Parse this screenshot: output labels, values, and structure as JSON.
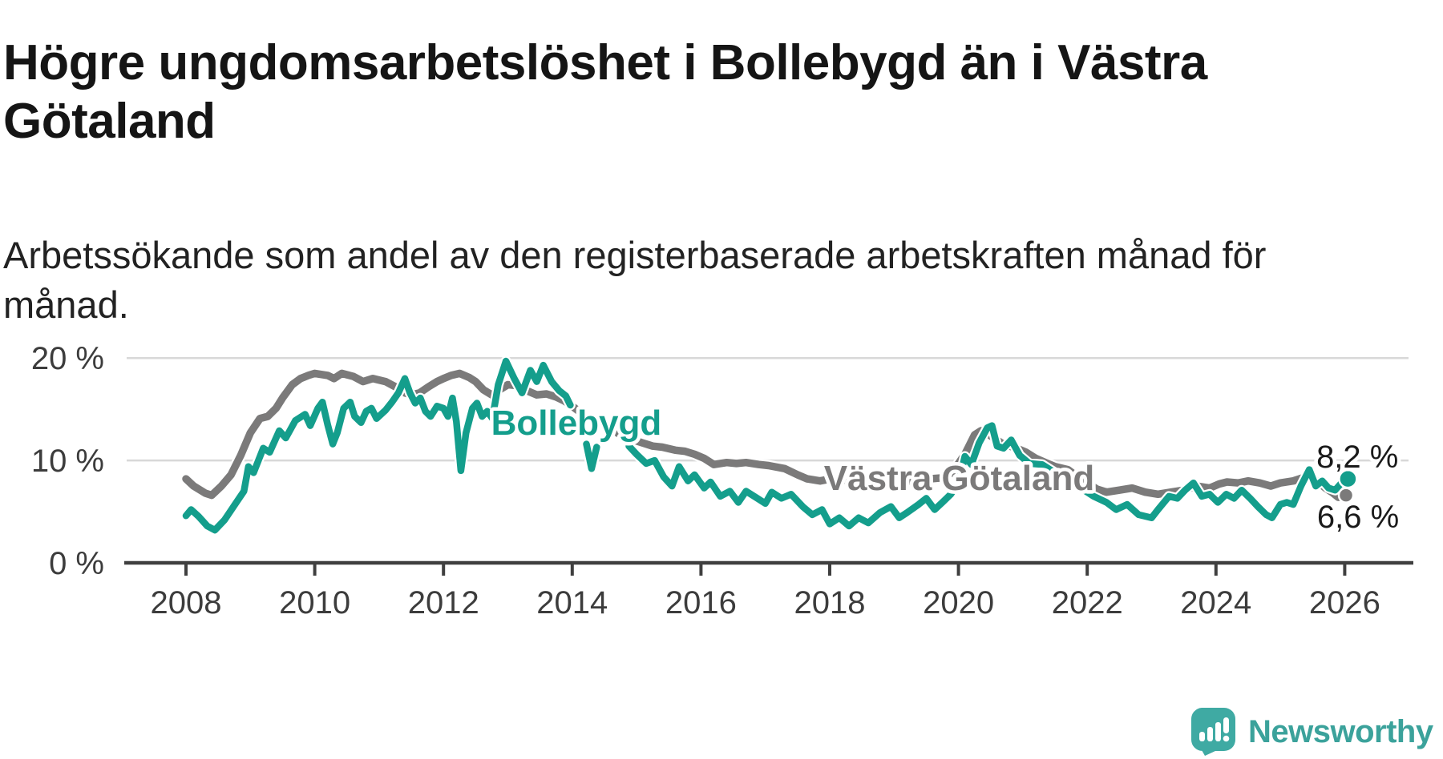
{
  "title": "Högre ungdomsarbetslöshet i Bollebygd än i Västra Götaland",
  "subtitle": "Arbetssökande som andel av den registerbaserade arbetskraften månad för månad.",
  "footer": {
    "brand": "Newsworthy",
    "brand_color": "#3faaa3"
  },
  "chart_data": {
    "type": "line",
    "title": "",
    "xlabel": "",
    "ylabel": "",
    "grid": "horizontal-only",
    "x_range": [
      2008,
      2026.9
    ],
    "ylim": [
      0,
      21
    ],
    "yticks": [
      {
        "value": 0,
        "label": "0 %"
      },
      {
        "value": 10,
        "label": "10 %"
      },
      {
        "value": 20,
        "label": "20 %"
      }
    ],
    "xticks": [
      {
        "value": 2008,
        "label": "2008"
      },
      {
        "value": 2010,
        "label": "2010"
      },
      {
        "value": 2012,
        "label": "2012"
      },
      {
        "value": 2014,
        "label": "2014"
      },
      {
        "value": 2016,
        "label": "2016"
      },
      {
        "value": 2018,
        "label": "2018"
      },
      {
        "value": 2020,
        "label": "2020"
      },
      {
        "value": 2022,
        "label": "2022"
      },
      {
        "value": 2024,
        "label": "2024"
      },
      {
        "value": 2026,
        "label": "2026"
      }
    ],
    "series": [
      {
        "name": "Västra Götaland",
        "color": "#7b7a7a",
        "line_width": 9.5,
        "label_anchor": {
          "year": 2017.91,
          "value": 7.1
        },
        "end_dot": {
          "year": 2026.02,
          "value": 6.6,
          "radius": 9
        },
        "end_label": {
          "text": "6,6 %",
          "year": 2025.57,
          "value": 3.45
        },
        "points": [
          [
            2008.0,
            8.2
          ],
          [
            2008.12,
            7.5
          ],
          [
            2008.3,
            6.8
          ],
          [
            2008.4,
            6.6
          ],
          [
            2008.55,
            7.5
          ],
          [
            2008.7,
            8.6
          ],
          [
            2008.85,
            10.5
          ],
          [
            2009.0,
            12.7
          ],
          [
            2009.15,
            14.1
          ],
          [
            2009.27,
            14.3
          ],
          [
            2009.4,
            15.1
          ],
          [
            2009.5,
            16.1
          ],
          [
            2009.65,
            17.4
          ],
          [
            2009.78,
            18.0
          ],
          [
            2009.9,
            18.3
          ],
          [
            2010.0,
            18.5
          ],
          [
            2010.2,
            18.3
          ],
          [
            2010.3,
            18.0
          ],
          [
            2010.42,
            18.5
          ],
          [
            2010.6,
            18.2
          ],
          [
            2010.75,
            17.7
          ],
          [
            2010.9,
            18.0
          ],
          [
            2011.1,
            17.7
          ],
          [
            2011.25,
            17.2
          ],
          [
            2011.4,
            16.6
          ],
          [
            2011.5,
            16.4
          ],
          [
            2011.63,
            16.6
          ],
          [
            2011.77,
            17.2
          ],
          [
            2011.9,
            17.7
          ],
          [
            2012.0,
            18.0
          ],
          [
            2012.12,
            18.3
          ],
          [
            2012.25,
            18.5
          ],
          [
            2012.4,
            18.1
          ],
          [
            2012.5,
            17.7
          ],
          [
            2012.62,
            16.9
          ],
          [
            2012.75,
            16.4
          ],
          [
            2012.87,
            16.9
          ],
          [
            2013.0,
            17.4
          ],
          [
            2013.15,
            17.3
          ],
          [
            2013.3,
            16.8
          ],
          [
            2013.45,
            16.4
          ],
          [
            2013.6,
            16.5
          ],
          [
            2013.75,
            16.2
          ],
          [
            2013.88,
            15.8
          ],
          [
            2014.0,
            15.3
          ],
          [
            2014.25,
            14.1
          ],
          [
            2014.5,
            13.5
          ],
          [
            2014.75,
            12.5
          ],
          [
            2014.95,
            12.0
          ],
          [
            2015.1,
            11.7
          ],
          [
            2015.25,
            11.4
          ],
          [
            2015.4,
            11.3
          ],
          [
            2015.6,
            11.0
          ],
          [
            2015.75,
            10.9
          ],
          [
            2015.9,
            10.6
          ],
          [
            2016.05,
            10.2
          ],
          [
            2016.2,
            9.6
          ],
          [
            2016.4,
            9.8
          ],
          [
            2016.55,
            9.7
          ],
          [
            2016.7,
            9.8
          ],
          [
            2016.9,
            9.6
          ],
          [
            2017.05,
            9.5
          ],
          [
            2017.3,
            9.2
          ],
          [
            2017.5,
            8.6
          ],
          [
            2017.65,
            8.2
          ],
          [
            2017.85,
            8.0
          ],
          [
            2018.1,
            8.3
          ],
          [
            2018.3,
            8.0
          ],
          [
            2018.5,
            8.0
          ],
          [
            2018.7,
            8.2
          ],
          [
            2018.9,
            8.3
          ],
          [
            2019.15,
            8.0
          ],
          [
            2019.35,
            8.0
          ],
          [
            2019.55,
            8.2
          ],
          [
            2019.75,
            8.3
          ],
          [
            2019.9,
            8.8
          ],
          [
            2020.1,
            10.6
          ],
          [
            2020.25,
            12.5
          ],
          [
            2020.35,
            12.9
          ],
          [
            2020.45,
            12.6
          ],
          [
            2020.55,
            12.2
          ],
          [
            2020.67,
            11.7
          ],
          [
            2020.8,
            11.4
          ],
          [
            2020.9,
            11.2
          ],
          [
            2021.05,
            10.8
          ],
          [
            2021.2,
            10.2
          ],
          [
            2021.35,
            9.8
          ],
          [
            2021.5,
            9.4
          ],
          [
            2021.7,
            9.1
          ],
          [
            2021.85,
            8.4
          ],
          [
            2022.0,
            7.8
          ],
          [
            2022.15,
            7.2
          ],
          [
            2022.3,
            6.9
          ],
          [
            2022.5,
            7.1
          ],
          [
            2022.7,
            7.3
          ],
          [
            2022.9,
            6.9
          ],
          [
            2023.1,
            6.7
          ],
          [
            2023.3,
            6.9
          ],
          [
            2023.5,
            7.1
          ],
          [
            2023.7,
            7.5
          ],
          [
            2023.9,
            7.3
          ],
          [
            2024.05,
            7.7
          ],
          [
            2024.17,
            7.9
          ],
          [
            2024.35,
            7.8
          ],
          [
            2024.5,
            8.0
          ],
          [
            2024.68,
            7.8
          ],
          [
            2024.85,
            7.5
          ],
          [
            2025.0,
            7.8
          ],
          [
            2025.2,
            8.0
          ],
          [
            2025.35,
            8.3
          ],
          [
            2025.5,
            8.3
          ],
          [
            2025.6,
            7.8
          ],
          [
            2025.7,
            7.3
          ],
          [
            2025.8,
            6.9
          ],
          [
            2025.9,
            6.4
          ],
          [
            2026.02,
            6.6
          ]
        ]
      },
      {
        "name": "Bollebygd",
        "color": "#149e8c",
        "line_width": 8.5,
        "label_anchor": {
          "year": 2012.74,
          "value": 12.5
        },
        "end_dot": {
          "year": 2026.05,
          "value": 8.2,
          "radius": 11
        },
        "end_label": {
          "text": "8,2 %",
          "year": 2025.56,
          "value": 9.3
        },
        "points": [
          [
            2008.0,
            4.6
          ],
          [
            2008.08,
            5.2
          ],
          [
            2008.2,
            4.5
          ],
          [
            2008.33,
            3.6
          ],
          [
            2008.45,
            3.2
          ],
          [
            2008.6,
            4.2
          ],
          [
            2008.75,
            5.6
          ],
          [
            2008.9,
            7.0
          ],
          [
            2008.97,
            9.4
          ],
          [
            2009.05,
            8.8
          ],
          [
            2009.2,
            11.2
          ],
          [
            2009.3,
            10.8
          ],
          [
            2009.45,
            12.9
          ],
          [
            2009.55,
            12.2
          ],
          [
            2009.7,
            13.9
          ],
          [
            2009.85,
            14.5
          ],
          [
            2009.93,
            13.4
          ],
          [
            2010.05,
            15.1
          ],
          [
            2010.12,
            15.7
          ],
          [
            2010.2,
            13.5
          ],
          [
            2010.28,
            11.6
          ],
          [
            2010.35,
            12.7
          ],
          [
            2010.45,
            15.1
          ],
          [
            2010.55,
            15.7
          ],
          [
            2010.62,
            14.3
          ],
          [
            2010.72,
            13.7
          ],
          [
            2010.8,
            14.8
          ],
          [
            2010.88,
            15.1
          ],
          [
            2010.96,
            14.1
          ],
          [
            2011.1,
            14.9
          ],
          [
            2011.2,
            15.7
          ],
          [
            2011.3,
            16.6
          ],
          [
            2011.4,
            18.0
          ],
          [
            2011.48,
            16.6
          ],
          [
            2011.56,
            15.6
          ],
          [
            2011.64,
            16.1
          ],
          [
            2011.72,
            14.8
          ],
          [
            2011.8,
            14.3
          ],
          [
            2011.9,
            15.3
          ],
          [
            2012.0,
            15.1
          ],
          [
            2012.07,
            14.3
          ],
          [
            2012.14,
            16.1
          ],
          [
            2012.2,
            13.8
          ],
          [
            2012.27,
            9.0
          ],
          [
            2012.35,
            12.7
          ],
          [
            2012.45,
            15.1
          ],
          [
            2012.52,
            15.6
          ],
          [
            2012.6,
            14.3
          ],
          [
            2012.68,
            14.8
          ],
          [
            2012.76,
            14.1
          ],
          [
            2012.85,
            17.4
          ],
          [
            2012.97,
            19.7
          ],
          [
            2013.1,
            18.0
          ],
          [
            2013.22,
            16.6
          ],
          [
            2013.35,
            18.8
          ],
          [
            2013.45,
            17.7
          ],
          [
            2013.55,
            19.3
          ],
          [
            2013.68,
            17.7
          ],
          [
            2013.8,
            16.8
          ],
          [
            2013.9,
            16.3
          ],
          [
            2013.97,
            15.4
          ],
          null,
          [
            2014.22,
            11.6
          ],
          [
            2014.3,
            9.2
          ],
          [
            2014.38,
            11.3
          ],
          null,
          [
            2014.88,
            11.4
          ],
          [
            2015.0,
            10.6
          ],
          [
            2015.15,
            9.7
          ],
          [
            2015.28,
            10.0
          ],
          [
            2015.42,
            8.4
          ],
          [
            2015.55,
            7.5
          ],
          [
            2015.66,
            9.4
          ],
          [
            2015.8,
            8.0
          ],
          [
            2015.9,
            8.6
          ],
          [
            2016.05,
            7.3
          ],
          [
            2016.15,
            7.9
          ],
          [
            2016.3,
            6.5
          ],
          [
            2016.45,
            7.0
          ],
          [
            2016.58,
            5.9
          ],
          [
            2016.7,
            7.0
          ],
          [
            2016.85,
            6.4
          ],
          [
            2017.0,
            5.8
          ],
          [
            2017.1,
            6.9
          ],
          [
            2017.25,
            6.3
          ],
          [
            2017.4,
            6.7
          ],
          [
            2017.58,
            5.5
          ],
          [
            2017.73,
            4.7
          ],
          [
            2017.88,
            5.2
          ],
          [
            2018.0,
            3.8
          ],
          [
            2018.15,
            4.4
          ],
          [
            2018.3,
            3.6
          ],
          [
            2018.45,
            4.4
          ],
          [
            2018.6,
            3.9
          ],
          [
            2018.78,
            4.9
          ],
          [
            2018.95,
            5.5
          ],
          [
            2019.08,
            4.4
          ],
          [
            2019.2,
            4.9
          ],
          [
            2019.38,
            5.7
          ],
          [
            2019.5,
            6.3
          ],
          [
            2019.63,
            5.2
          ],
          [
            2019.75,
            5.9
          ],
          [
            2019.88,
            6.7
          ],
          [
            2020.0,
            7.8
          ],
          [
            2020.1,
            10.4
          ],
          [
            2020.2,
            9.6
          ],
          [
            2020.32,
            11.7
          ],
          [
            2020.45,
            13.2
          ],
          [
            2020.52,
            13.4
          ],
          [
            2020.6,
            11.4
          ],
          [
            2020.7,
            11.2
          ],
          [
            2020.82,
            12.0
          ],
          [
            2020.95,
            10.5
          ],
          [
            2021.1,
            9.7
          ],
          [
            2021.3,
            9.6
          ],
          [
            2021.5,
            8.8
          ],
          [
            2021.7,
            8.2
          ],
          [
            2021.9,
            7.3
          ],
          [
            2022.1,
            6.5
          ],
          [
            2022.3,
            5.9
          ],
          [
            2022.45,
            5.2
          ],
          [
            2022.62,
            5.7
          ],
          [
            2022.8,
            4.7
          ],
          [
            2023.0,
            4.4
          ],
          [
            2023.1,
            5.2
          ],
          [
            2023.27,
            6.5
          ],
          [
            2023.4,
            6.3
          ],
          [
            2023.52,
            7.1
          ],
          [
            2023.65,
            7.8
          ],
          [
            2023.78,
            6.5
          ],
          [
            2023.9,
            6.7
          ],
          [
            2024.03,
            5.9
          ],
          [
            2024.16,
            6.7
          ],
          [
            2024.28,
            6.3
          ],
          [
            2024.4,
            7.1
          ],
          [
            2024.53,
            6.3
          ],
          [
            2024.65,
            5.5
          ],
          [
            2024.78,
            4.7
          ],
          [
            2024.87,
            4.4
          ],
          [
            2025.0,
            5.7
          ],
          [
            2025.1,
            5.9
          ],
          [
            2025.2,
            5.7
          ],
          [
            2025.32,
            7.5
          ],
          [
            2025.45,
            9.1
          ],
          [
            2025.55,
            7.5
          ],
          [
            2025.65,
            8.0
          ],
          [
            2025.75,
            7.3
          ],
          [
            2025.85,
            7.1
          ],
          [
            2025.95,
            7.8
          ],
          [
            2026.05,
            8.2
          ]
        ]
      }
    ]
  }
}
